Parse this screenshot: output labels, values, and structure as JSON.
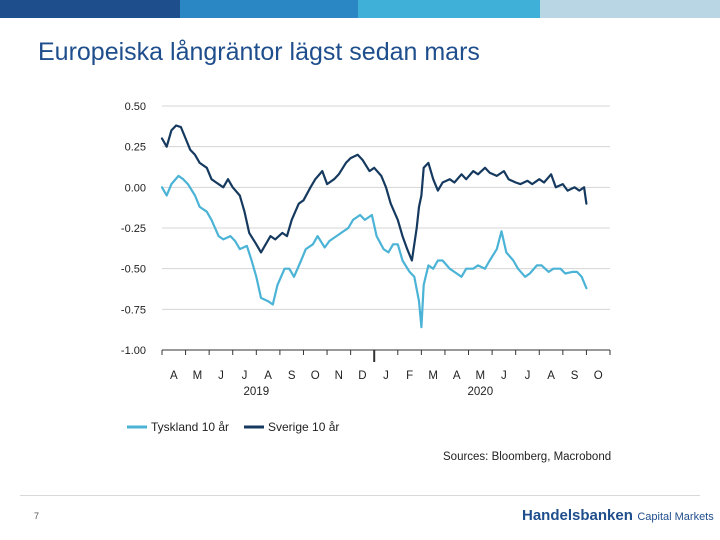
{
  "header": {
    "title": "Europeiska långräntor lägst sedan mars",
    "bar_colors": [
      "#1f4e8c",
      "#2b86c4",
      "#3fb1d8",
      "#b9d6e4"
    ]
  },
  "chart_data": {
    "type": "line",
    "title": "Europeiska långräntor lägst sedan mars",
    "xlabel": "",
    "ylabel": "",
    "ylim": [
      -1.0,
      0.5
    ],
    "yticks": [
      0.5,
      0.25,
      0.0,
      -0.25,
      -0.5,
      -0.75,
      -1.0
    ],
    "ytick_labels": [
      "0.50",
      "0.25",
      "0.00",
      "-0.25",
      "-0.50",
      "-0.75",
      "-1.00"
    ],
    "grid": true,
    "x_range_months": [
      0,
      19
    ],
    "month_labels": [
      "A",
      "M",
      "J",
      "J",
      "A",
      "S",
      "O",
      "N",
      "D",
      "J",
      "F",
      "M",
      "A",
      "M",
      "J",
      "J",
      "A",
      "S",
      "O"
    ],
    "year_labels": [
      {
        "label": "2019",
        "center": 4
      },
      {
        "label": "2020",
        "center": 13.5
      }
    ],
    "legend_position": "bottom-left",
    "series": [
      {
        "name": "Tyskland 10 år",
        "color": "#4bb3d6",
        "x": [
          0,
          0.2,
          0.4,
          0.7,
          0.9,
          1.1,
          1.4,
          1.6,
          1.9,
          2.1,
          2.4,
          2.6,
          2.9,
          3.1,
          3.3,
          3.6,
          3.8,
          4.0,
          4.2,
          4.5,
          4.7,
          4.9,
          5.2,
          5.4,
          5.6,
          5.9,
          6.1,
          6.4,
          6.6,
          6.9,
          7.1,
          7.4,
          7.6,
          7.9,
          8.1,
          8.4,
          8.6,
          8.9,
          9.1,
          9.4,
          9.6,
          9.8,
          10.0,
          10.2,
          10.5,
          10.7,
          10.9,
          11.0,
          11.1,
          11.3,
          11.5,
          11.7,
          11.9,
          12.2,
          12.4,
          12.7,
          12.9,
          13.2,
          13.4,
          13.7,
          13.9,
          14.2,
          14.4,
          14.6,
          14.9,
          15.1,
          15.4,
          15.6,
          15.9,
          16.1,
          16.4,
          16.6,
          16.9,
          17.1,
          17.4,
          17.6,
          17.8,
          18.0
        ],
        "values": [
          0.0,
          -0.05,
          0.02,
          0.07,
          0.05,
          0.02,
          -0.05,
          -0.12,
          -0.15,
          -0.2,
          -0.3,
          -0.32,
          -0.3,
          -0.33,
          -0.38,
          -0.36,
          -0.45,
          -0.55,
          -0.68,
          -0.7,
          -0.72,
          -0.6,
          -0.5,
          -0.5,
          -0.55,
          -0.45,
          -0.38,
          -0.35,
          -0.3,
          -0.37,
          -0.33,
          -0.3,
          -0.28,
          -0.25,
          -0.2,
          -0.17,
          -0.2,
          -0.17,
          -0.3,
          -0.38,
          -0.4,
          -0.35,
          -0.35,
          -0.45,
          -0.52,
          -0.55,
          -0.7,
          -0.86,
          -0.6,
          -0.48,
          -0.5,
          -0.45,
          -0.45,
          -0.5,
          -0.52,
          -0.55,
          -0.5,
          -0.5,
          -0.48,
          -0.5,
          -0.45,
          -0.38,
          -0.27,
          -0.4,
          -0.45,
          -0.5,
          -0.55,
          -0.53,
          -0.48,
          -0.48,
          -0.52,
          -0.5,
          -0.5,
          -0.53,
          -0.52,
          -0.52,
          -0.55,
          -0.62
        ]
      },
      {
        "name": "Sverige 10 år",
        "color": "#163a5f",
        "x": [
          0,
          0.2,
          0.4,
          0.6,
          0.8,
          1.0,
          1.2,
          1.4,
          1.6,
          1.9,
          2.1,
          2.3,
          2.6,
          2.8,
          3.0,
          3.3,
          3.5,
          3.7,
          4.0,
          4.2,
          4.4,
          4.6,
          4.8,
          5.1,
          5.3,
          5.5,
          5.8,
          6.0,
          6.3,
          6.5,
          6.8,
          7.0,
          7.3,
          7.5,
          7.8,
          8.0,
          8.3,
          8.5,
          8.8,
          9.0,
          9.3,
          9.5,
          9.7,
          10.0,
          10.2,
          10.4,
          10.6,
          10.8,
          10.9,
          11.0,
          11.1,
          11.3,
          11.5,
          11.7,
          11.9,
          12.2,
          12.4,
          12.7,
          12.9,
          13.2,
          13.4,
          13.7,
          13.9,
          14.2,
          14.5,
          14.7,
          15.0,
          15.2,
          15.5,
          15.7,
          16.0,
          16.2,
          16.5,
          16.7,
          17.0,
          17.2,
          17.5,
          17.7,
          17.9,
          18.0
        ],
        "values": [
          0.3,
          0.25,
          0.35,
          0.38,
          0.37,
          0.3,
          0.23,
          0.2,
          0.15,
          0.12,
          0.05,
          0.03,
          0.0,
          0.05,
          0.0,
          -0.05,
          -0.15,
          -0.28,
          -0.35,
          -0.4,
          -0.35,
          -0.3,
          -0.32,
          -0.28,
          -0.3,
          -0.2,
          -0.1,
          -0.08,
          0.0,
          0.05,
          0.1,
          0.02,
          0.05,
          0.08,
          0.15,
          0.18,
          0.2,
          0.17,
          0.1,
          0.12,
          0.07,
          0.0,
          -0.1,
          -0.2,
          -0.3,
          -0.38,
          -0.45,
          -0.25,
          -0.12,
          -0.05,
          0.12,
          0.15,
          0.05,
          -0.02,
          0.03,
          0.05,
          0.03,
          0.08,
          0.05,
          0.1,
          0.08,
          0.12,
          0.09,
          0.07,
          0.1,
          0.05,
          0.03,
          0.02,
          0.04,
          0.02,
          0.05,
          0.03,
          0.08,
          0.0,
          0.02,
          -0.02,
          0.0,
          -0.02,
          0.0,
          -0.1
        ]
      }
    ]
  },
  "source": "Sources: Bloomberg, Macrobond",
  "footer": {
    "page_number": "7",
    "logo_bold": "Handelsbanken",
    "logo_light": "Capital Markets"
  }
}
